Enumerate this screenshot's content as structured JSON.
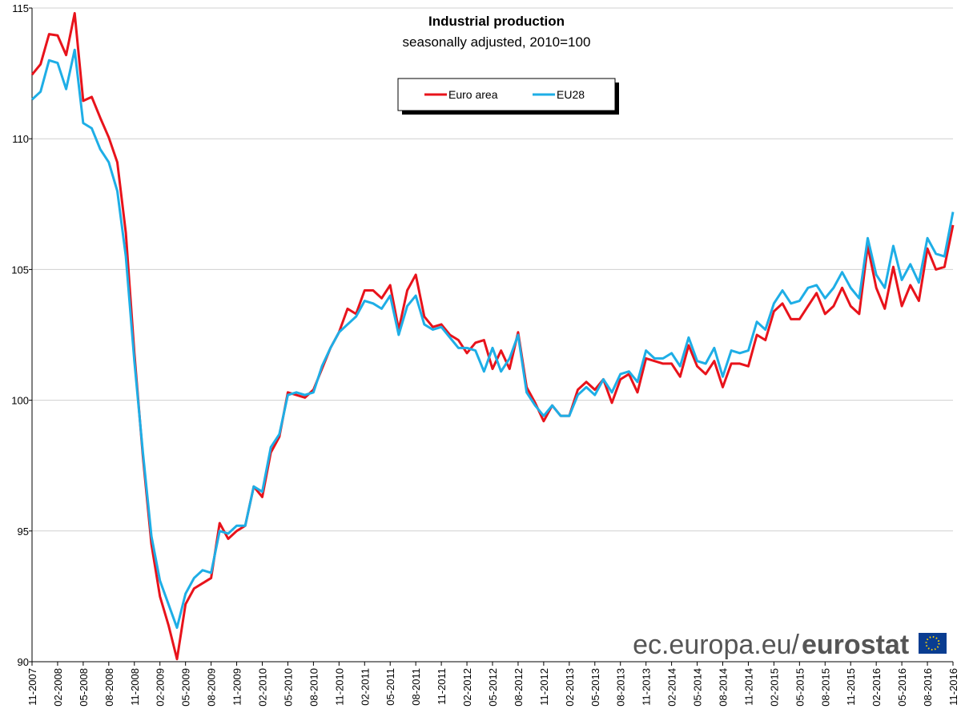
{
  "chart_data": {
    "type": "line",
    "title": "Industrial production",
    "subtitle": "seasonally adjusted, 2010=100",
    "source_url": "ec.europa.eu/",
    "source_brand": "eurostat",
    "categories": [
      "11-2007",
      null,
      null,
      "02-2008",
      null,
      null,
      "05-2008",
      null,
      null,
      "08-2008",
      null,
      null,
      "11-2008",
      null,
      null,
      "02-2009",
      null,
      null,
      "05-2009",
      null,
      null,
      "08-2009",
      null,
      null,
      "11-2009",
      null,
      null,
      "02-2010",
      null,
      null,
      "05-2010",
      null,
      null,
      "08-2010",
      null,
      null,
      "11-2010",
      null,
      null,
      "02-2011",
      null,
      null,
      "05-2011",
      null,
      null,
      "08-2011",
      null,
      null,
      "11-2011",
      null,
      null,
      "02-2012",
      null,
      null,
      "05-2012",
      null,
      null,
      "08-2012",
      null,
      null,
      "11-2012",
      null,
      null,
      "02-2013",
      null,
      null,
      "05-2013",
      null,
      null,
      "08-2013",
      null,
      null,
      "11-2013",
      null,
      null,
      "02-2014",
      null,
      null,
      "05-2014",
      null,
      null,
      "08-2014",
      null,
      null,
      "11-2014",
      null,
      null,
      "02-2015",
      null,
      null,
      "05-2015",
      null,
      null,
      "08-2015",
      null,
      null,
      "11-2015",
      null,
      null,
      "02-2016",
      null,
      null,
      "05-2016",
      null,
      null,
      "08-2016",
      null,
      null,
      "11-2016"
    ],
    "series": [
      {
        "name": "Euro area",
        "color": "#e8131b",
        "values": [
          112.45,
          112.85,
          114.0,
          113.95,
          113.2,
          114.8,
          111.45,
          111.6,
          110.8,
          110.05,
          109.1,
          106.4,
          101.8,
          97.85,
          94.5,
          92.5,
          91.4,
          90.1,
          92.2,
          92.8,
          93.0,
          93.2,
          95.3,
          94.7,
          95.0,
          95.2,
          96.7,
          96.3,
          98.0,
          98.6,
          100.3,
          100.2,
          100.1,
          100.4,
          101.2,
          102.0,
          102.6,
          103.5,
          103.3,
          104.2,
          104.2,
          103.9,
          104.4,
          102.7,
          104.2,
          104.8,
          103.2,
          102.8,
          102.9,
          102.5,
          102.3,
          101.8,
          102.2,
          102.3,
          101.2,
          101.9,
          101.2,
          102.6,
          100.5,
          99.9,
          99.2,
          99.8,
          99.4,
          99.4,
          100.4,
          100.7,
          100.4,
          100.8,
          99.9,
          100.8,
          101.0,
          100.3,
          101.6,
          101.5,
          101.4,
          101.4,
          100.9,
          102.1,
          101.3,
          101.0,
          101.5,
          100.5,
          101.4,
          101.4,
          101.3,
          102.5,
          102.3,
          103.4,
          103.7,
          103.1,
          103.1,
          103.6,
          104.1,
          103.3,
          103.6,
          104.3,
          103.6,
          103.3,
          105.9,
          104.3,
          103.5,
          105.1,
          103.6,
          104.4,
          103.8,
          105.8,
          105.0,
          105.1,
          106.7
        ]
      },
      {
        "name": "EU28",
        "color": "#1eaee6",
        "values": [
          111.5,
          111.8,
          113.0,
          112.9,
          111.9,
          113.4,
          110.6,
          110.4,
          109.6,
          109.1,
          108.0,
          105.5,
          101.5,
          98.0,
          94.8,
          93.1,
          92.2,
          91.3,
          92.6,
          93.2,
          93.5,
          93.4,
          95.0,
          94.9,
          95.2,
          95.2,
          96.7,
          96.5,
          98.2,
          98.7,
          100.2,
          100.3,
          100.2,
          100.3,
          101.3,
          102.0,
          102.6,
          102.9,
          103.2,
          103.8,
          103.7,
          103.5,
          104.0,
          102.5,
          103.6,
          104.0,
          102.9,
          102.7,
          102.8,
          102.4,
          102.0,
          102.0,
          101.9,
          101.1,
          102.0,
          101.1,
          101.6,
          102.5,
          100.3,
          99.8,
          99.4,
          99.8,
          99.4,
          99.4,
          100.2,
          100.5,
          100.2,
          100.8,
          100.3,
          101.0,
          101.1,
          100.7,
          101.9,
          101.6,
          101.6,
          101.8,
          101.3,
          102.4,
          101.5,
          101.4,
          102.0,
          100.9,
          101.9,
          101.8,
          101.9,
          103.0,
          102.7,
          103.7,
          104.2,
          103.7,
          103.8,
          104.3,
          104.4,
          103.9,
          104.3,
          104.9,
          104.3,
          103.9,
          106.2,
          104.8,
          104.3,
          105.9,
          104.6,
          105.2,
          104.5,
          106.2,
          105.6,
          105.5,
          107.2
        ]
      }
    ],
    "ylim": [
      90,
      115
    ],
    "yticks": [
      90,
      95,
      100,
      105,
      110,
      115
    ],
    "grid": true
  }
}
